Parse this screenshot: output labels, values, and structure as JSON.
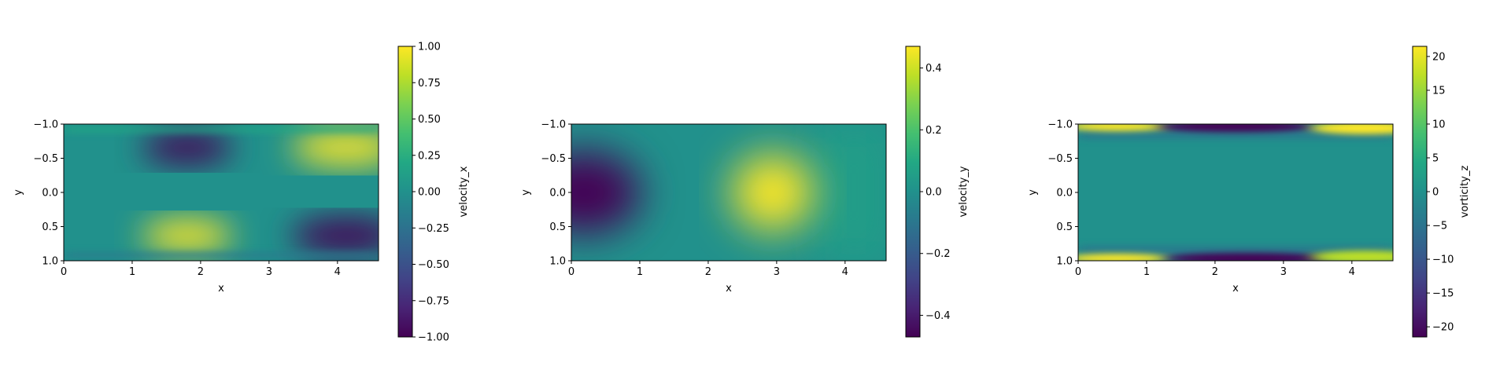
{
  "chart_data": [
    {
      "type": "heatmap",
      "field": "velocity_x",
      "xlabel": "x",
      "ylabel": "y",
      "xlim": [
        0,
        4.6
      ],
      "ylim": [
        -1.0,
        1.0
      ],
      "y_inverted": true,
      "xticks": [
        "0",
        "1",
        "2",
        "3",
        "4"
      ],
      "yticks": [
        "−1.0",
        "−0.5",
        "0.0",
        "0.5",
        "1.0"
      ],
      "colormap": "viridis",
      "colorbar": {
        "label": "velocity_x",
        "range": [
          -1.0,
          1.0
        ],
        "ticks": [
          1.0,
          0.75,
          0.5,
          0.25,
          0.0,
          -0.25,
          -0.5,
          -0.75,
          -1.0
        ],
        "tick_labels": [
          "1.00",
          "0.75",
          "0.50",
          "0.25",
          "0.00",
          "−0.25",
          "−0.50",
          "−0.75",
          "−1.00"
        ]
      }
    },
    {
      "type": "heatmap",
      "field": "velocity_y",
      "xlabel": "x",
      "ylabel": "y",
      "xlim": [
        0,
        4.6
      ],
      "ylim": [
        -1.0,
        1.0
      ],
      "y_inverted": true,
      "xticks": [
        "0",
        "1",
        "2",
        "3",
        "4"
      ],
      "yticks": [
        "−1.0",
        "−0.5",
        "0.0",
        "0.5",
        "1.0"
      ],
      "colormap": "viridis",
      "colorbar": {
        "label": "velocity_y",
        "range": [
          -0.47,
          0.47
        ],
        "ticks": [
          0.4,
          0.2,
          0.0,
          -0.2,
          -0.4
        ],
        "tick_labels": [
          "0.4",
          "0.2",
          "0.0",
          "−0.2",
          "−0.4"
        ]
      }
    },
    {
      "type": "heatmap",
      "field": "vorticity_z",
      "xlabel": "x",
      "ylabel": "y",
      "xlim": [
        0,
        4.6
      ],
      "ylim": [
        -1.0,
        1.0
      ],
      "y_inverted": true,
      "xticks": [
        "0",
        "1",
        "2",
        "3",
        "4"
      ],
      "yticks": [
        "−1.0",
        "−0.5",
        "0.0",
        "0.5",
        "1.0"
      ],
      "colormap": "viridis",
      "colorbar": {
        "label": "vorticity_z",
        "range": [
          -21.5,
          21.5
        ],
        "ticks": [
          20,
          15,
          10,
          5,
          0,
          -5,
          -10,
          -15,
          -20
        ],
        "tick_labels": [
          "20",
          "15",
          "10",
          "5",
          "0",
          "−5",
          "−10",
          "−15",
          "−20"
        ]
      }
    }
  ]
}
